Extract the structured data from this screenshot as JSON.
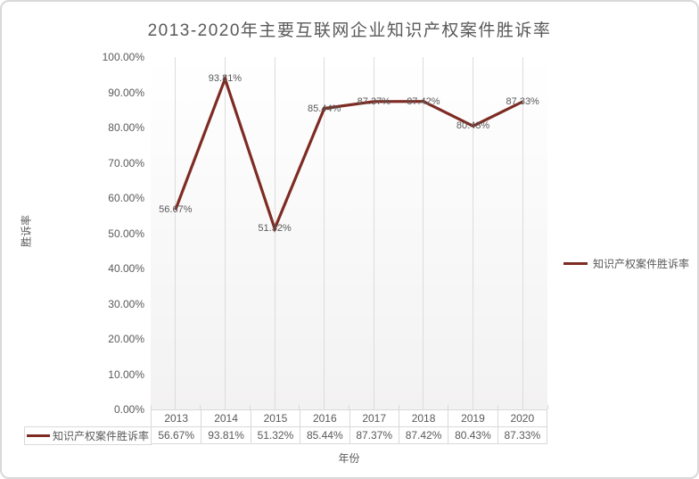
{
  "title": "2013-2020年主要互联网企业知识产权案件胜诉率",
  "legend": {
    "label": "知识产权案件胜诉率"
  },
  "axes": {
    "y_title": "胜诉率",
    "x_title": "年份",
    "y_tick_labels": [
      "100.00%",
      "90.00%",
      "80.00%",
      "70.00%",
      "60.00%",
      "50.00%",
      "40.00%",
      "30.00%",
      "20.00%",
      "10.00%",
      "0.00%"
    ]
  },
  "table": {
    "row_label": "知识产权案件胜诉率"
  },
  "colors": {
    "series": "#7D2B23",
    "grid": "#DCDCDC",
    "border": "#D9D9D9",
    "text": "#595959"
  },
  "chart_data": {
    "type": "line",
    "title": "2013-2020年主要互联网企业知识产权案件胜诉率",
    "categories": [
      "2013",
      "2014",
      "2015",
      "2016",
      "2017",
      "2018",
      "2019",
      "2020"
    ],
    "series": [
      {
        "name": "知识产权案件胜诉率",
        "values": [
          56.67,
          93.81,
          51.32,
          85.44,
          87.37,
          87.42,
          80.43,
          87.33
        ],
        "display_labels": [
          "56.67%",
          "93.81%",
          "51.32%",
          "85.44%",
          "87.37%",
          "87.42%",
          "80.43%",
          "87.33%"
        ],
        "color": "#7D2B23"
      }
    ],
    "xlabel": "年份",
    "ylabel": "胜诉率",
    "ylim": [
      0,
      100
    ],
    "y_tick_step": 10,
    "y_tick_format": "percent_2dp",
    "grid": "vertical-major-only",
    "markers": false,
    "data_labels": "centered-on-points",
    "legend_position": "right",
    "data_table_shown": true
  }
}
